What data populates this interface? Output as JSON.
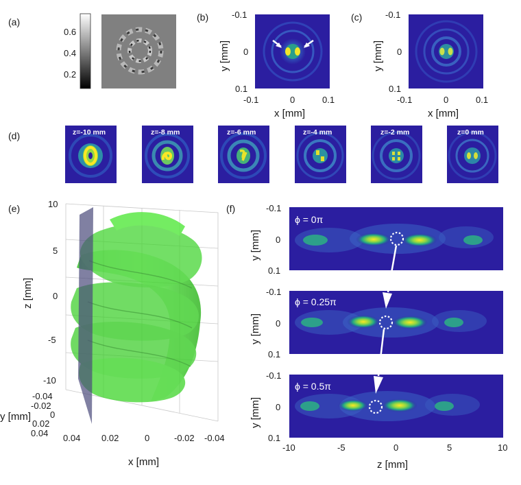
{
  "panels": {
    "a": {
      "label": "(a)",
      "colorbar_ticks": [
        "0.6",
        "0.4",
        "0.2"
      ]
    },
    "b": {
      "label": "(b)",
      "yticks": [
        "-0.1",
        "0",
        "0.1"
      ],
      "xticks": [
        "-0.1",
        "0",
        "0.1"
      ],
      "xlabel": "x [mm]",
      "ylabel": "y [mm]"
    },
    "c": {
      "label": "(c)",
      "yticks": [
        "-0.1",
        "0",
        "0.1"
      ],
      "xticks": [
        "-0.1",
        "0",
        "0.1"
      ],
      "xlabel": "x [mm]",
      "ylabel": "y [mm]"
    },
    "d": {
      "label": "(d)",
      "frames": [
        "z=-10 mm",
        "z=-8 mm",
        "z=-6 mm",
        "z=-4 mm",
        "z=-2 mm",
        "z=0 mm"
      ]
    },
    "e": {
      "label": "(e)",
      "zticks": [
        "10",
        "5",
        "0",
        "-5",
        "-10"
      ],
      "zlabel": "z [mm]",
      "yticks": [
        "-0.04",
        "-0.02",
        "0",
        "0.02",
        "0.04"
      ],
      "ylabel": "y [mm]",
      "xticks": [
        "0.04",
        "0.02",
        "0",
        "-0.02",
        "-0.04"
      ],
      "xlabel": "x [mm]"
    },
    "f": {
      "label": "(f)",
      "ylabel": "y [mm]",
      "yticks": [
        "-0.1",
        "0",
        "0.1"
      ],
      "xticks": [
        "-10",
        "-5",
        "0",
        "5",
        "10"
      ],
      "xlabel": "z [mm]",
      "rows": [
        {
          "phase": "ϕ = 0π"
        },
        {
          "phase": "ϕ = 0.25π"
        },
        {
          "phase": "ϕ = 0.5π"
        }
      ]
    }
  },
  "colors": {
    "field_bg": "#2b1ea0",
    "iso_green": "#38d62a",
    "plane": "#4a4a7a"
  }
}
